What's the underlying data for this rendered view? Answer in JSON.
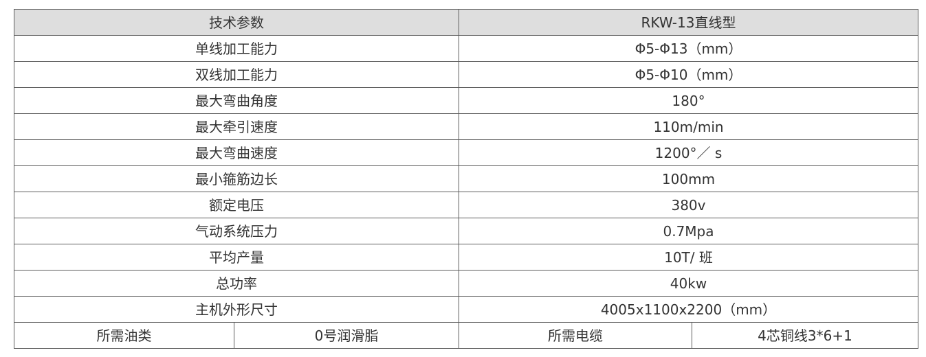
{
  "header": {
    "param": "技术参数",
    "model": "RKW-13直线型"
  },
  "rows": [
    {
      "label": "单线加工能力",
      "value": "Φ5-Φ13（mm）"
    },
    {
      "label": "双线加工能力",
      "value": "Φ5-Φ10（mm）"
    },
    {
      "label": "最大弯曲角度",
      "value": "180°"
    },
    {
      "label": "最大牵引速度",
      "value": "110m/min"
    },
    {
      "label": "最大弯曲速度",
      "value": "1200°／ s"
    },
    {
      "label": "最小箍筋边长",
      "value": "100mm"
    },
    {
      "label": "额定电压",
      "value": "380v"
    },
    {
      "label": "气动系统压力",
      "value": "0.7Mpa"
    },
    {
      "label": "平均产量",
      "value": "10T/ 班"
    },
    {
      "label": "总功率",
      "value": "40kw"
    },
    {
      "label": "主机外形尺寸",
      "value": "4005x1100x2200（mm）"
    }
  ],
  "last_row": {
    "oil_label": "所需油类",
    "oil_value": "0号润滑脂",
    "cable_label": "所需电缆",
    "cable_value": "4芯铜线3*6+1"
  }
}
